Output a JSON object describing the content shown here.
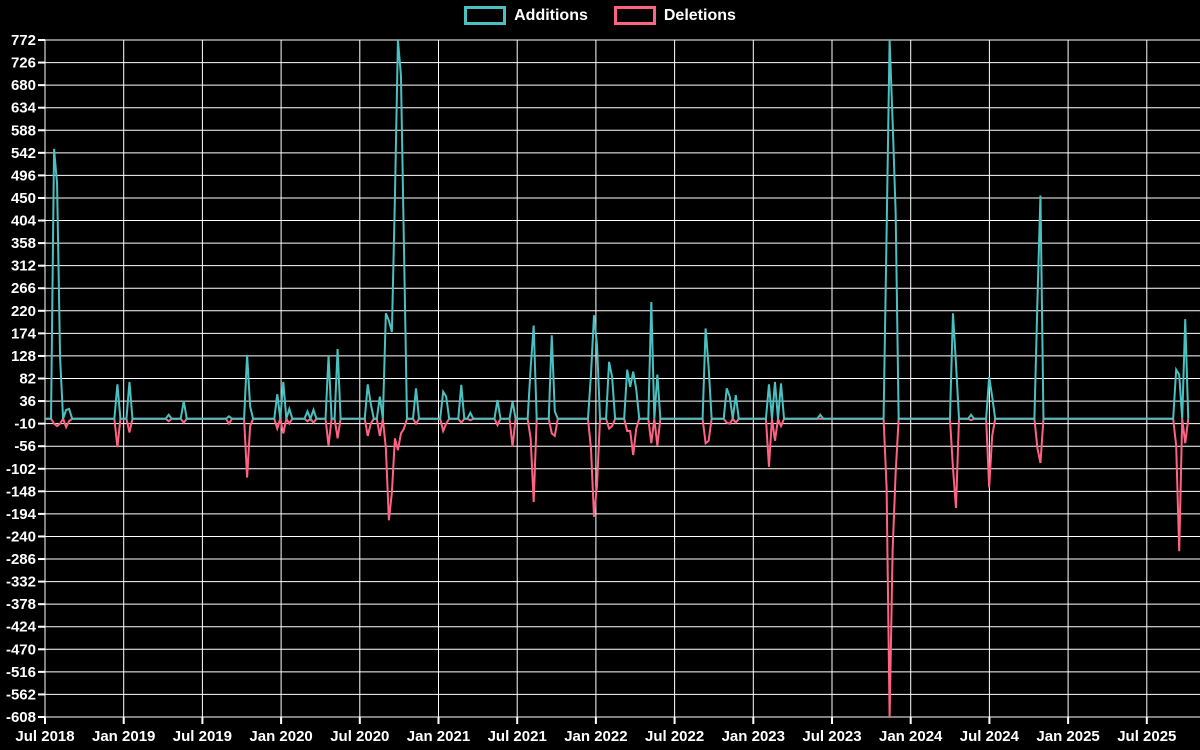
{
  "legend": {
    "additions_label": "Additions",
    "deletions_label": "Deletions"
  },
  "colors": {
    "additions": "#4BC0C0",
    "deletions": "#FF6384",
    "background": "#000000",
    "grid": "#FFFFFF",
    "text": "#FFFFFF"
  },
  "chart_data": {
    "type": "line",
    "title": "",
    "description": "Weekly code additions and deletions over time; flat at 0 with spikes",
    "legend_position": "top-center",
    "grid": true,
    "x_axis": {
      "tick_labels": [
        "Jul 2018",
        "Jan 2019",
        "Jul 2019",
        "Jan 2020",
        "Jul 2020",
        "Jan 2021",
        "Jul 2021",
        "Jan 2022",
        "Jul 2022",
        "Jan 2023",
        "Jul 2023",
        "Jan 2024",
        "Jul 2024",
        "Jan 2025",
        "Jul 2025"
      ],
      "tick_interval": "6 months",
      "weeks_total": 380,
      "start_week_label": "Jul 2018"
    },
    "y_axis": {
      "max": 772,
      "min": -608,
      "step": 46,
      "tick_labels": [
        "772",
        "726",
        "680",
        "634",
        "588",
        "542",
        "496",
        "450",
        "404",
        "358",
        "312",
        "266",
        "220",
        "174",
        "128",
        "82",
        "36",
        "-10",
        "-56",
        "-102",
        "-148",
        "-194",
        "-240",
        "-286",
        "-332",
        "-378",
        "-424",
        "-470",
        "-516",
        "-562",
        "-608"
      ]
    },
    "series": [
      {
        "name": "Additions",
        "color": "#4BC0C0",
        "baseline": 0,
        "weekly_spikes": {
          "3": 550,
          "4": 480,
          "5": 124,
          "7": 18,
          "8": 20,
          "24": 70,
          "28": 75,
          "41": 8,
          "46": 36,
          "61": 5,
          "67": 130,
          "68": 25,
          "77": 50,
          "79": 75,
          "81": 20,
          "87": 15,
          "89": 18,
          "94": 128,
          "97": 142,
          "107": 70,
          "108": 30,
          "111": 45,
          "113": 215,
          "114": 200,
          "115": 177,
          "116": 450,
          "117": 772,
          "118": 700,
          "119": 350,
          "123": 62,
          "132": 55,
          "133": 45,
          "138": 69,
          "141": 12,
          "150": 38,
          "155": 35,
          "161": 103,
          "162": 190,
          "168": 170,
          "169": 15,
          "181": 90,
          "182": 211,
          "183": 150,
          "187": 116,
          "188": 85,
          "193": 100,
          "194": 65,
          "195": 96,
          "196": 60,
          "201": 238,
          "203": 90,
          "219": 184,
          "220": 105,
          "226": 62,
          "227": 45,
          "229": 48,
          "240": 70,
          "242": 75,
          "244": 72,
          "257": 8,
          "279": 380,
          "280": 772,
          "281": 605,
          "282": 420,
          "301": 215,
          "302": 113,
          "307": 8,
          "313": 85,
          "314": 45,
          "329": 240,
          "330": 455,
          "375": 100,
          "376": 90,
          "378": 203
        }
      },
      {
        "name": "Deletions",
        "color": "#FF6384",
        "baseline": 0,
        "weekly_spikes": {
          "3": -10,
          "4": -15,
          "5": -10,
          "7": -17,
          "8": -5,
          "24": -58,
          "28": -28,
          "41": -5,
          "46": -8,
          "61": -10,
          "67": -120,
          "68": -15,
          "77": -20,
          "79": -30,
          "81": -10,
          "87": -5,
          "89": -8,
          "94": -55,
          "97": -40,
          "107": -35,
          "108": -10,
          "111": -35,
          "113": -60,
          "114": -207,
          "115": -150,
          "116": -40,
          "117": -64,
          "118": -30,
          "119": -20,
          "123": -10,
          "132": -25,
          "133": -10,
          "138": -8,
          "141": -3,
          "150": -13,
          "155": -57,
          "161": -40,
          "162": -170,
          "168": -30,
          "169": -35,
          "181": -60,
          "182": -200,
          "183": -135,
          "187": -20,
          "188": -15,
          "193": -25,
          "194": -25,
          "195": -74,
          "196": -20,
          "201": -50,
          "203": -55,
          "219": -50,
          "220": -45,
          "226": -8,
          "227": -10,
          "229": -8,
          "240": -98,
          "242": -45,
          "244": -15,
          "279": -140,
          "280": -608,
          "281": -268,
          "282": -110,
          "301": -100,
          "302": -182,
          "307": -3,
          "313": -140,
          "314": -35,
          "329": -60,
          "330": -90,
          "375": -55,
          "376": -270,
          "378": -50
        }
      }
    ]
  }
}
